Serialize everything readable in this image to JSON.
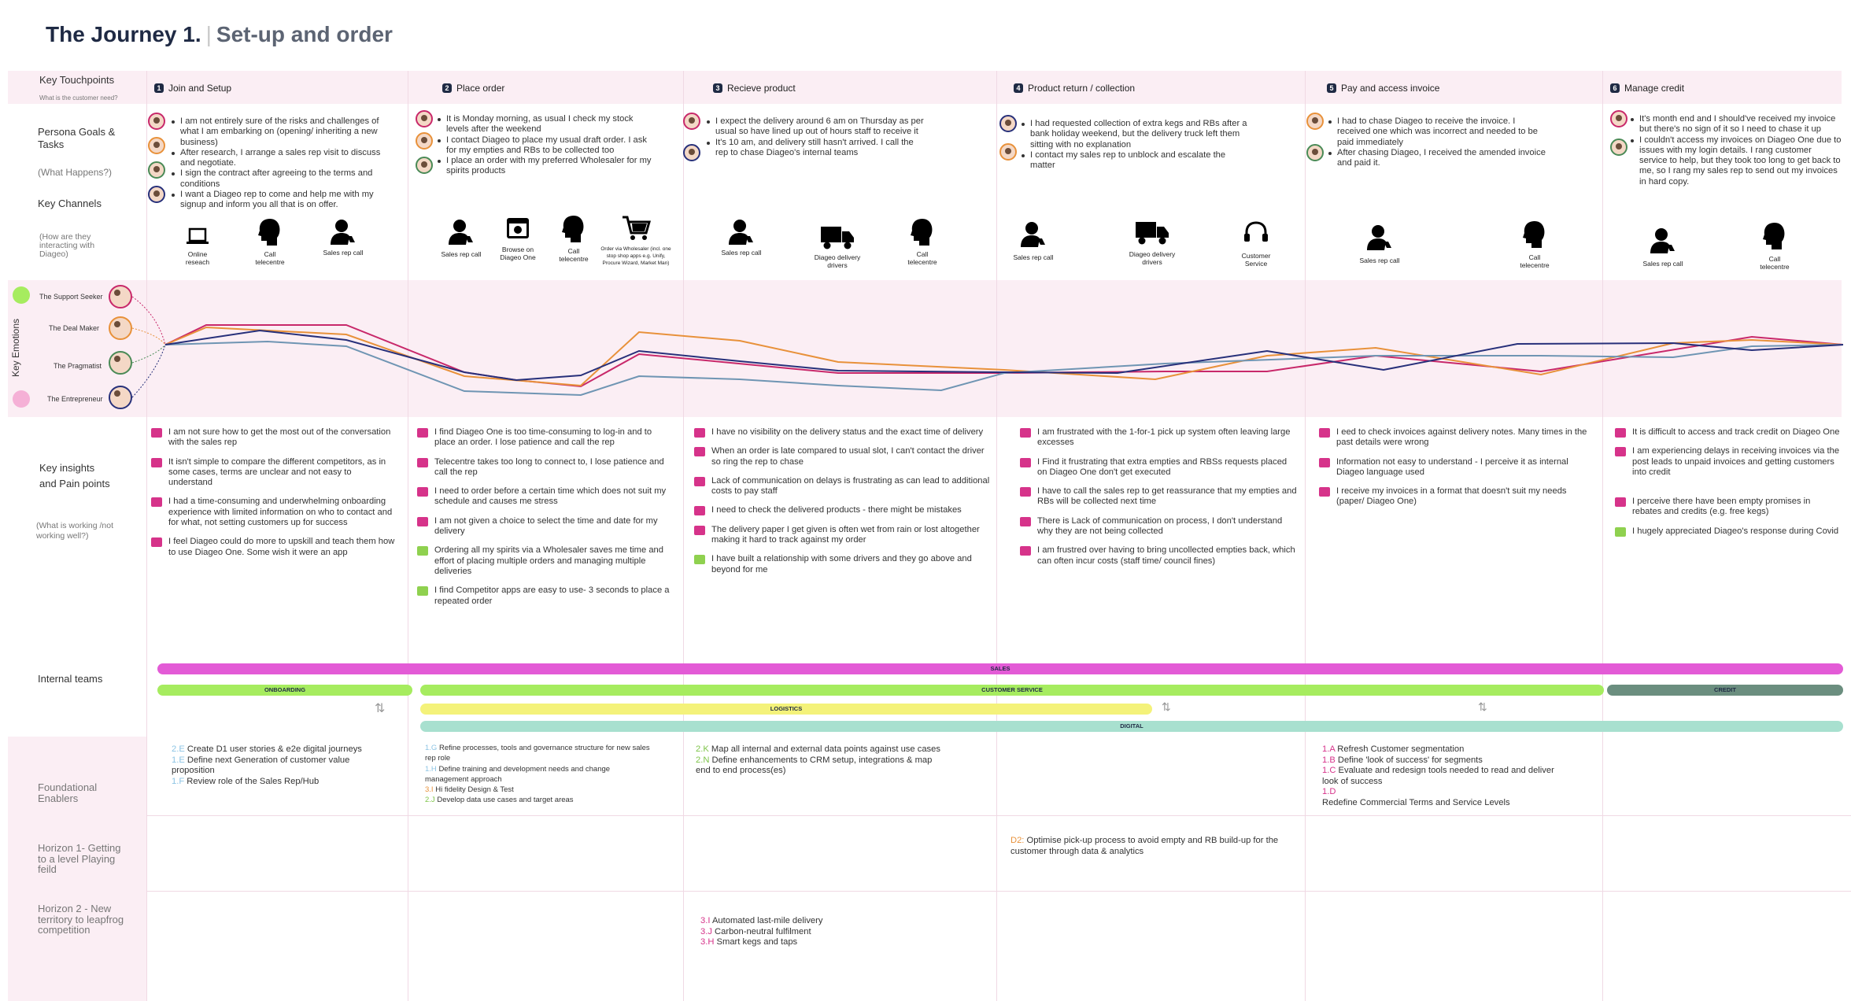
{
  "title": {
    "main": "The Journey 1.",
    "sep": "|",
    "sub": "Set-up and order"
  },
  "rows": {
    "touchpoints": "Key Touchpoints",
    "touchpoints_sub": "What is the customer need?",
    "goals": "Persona Goals & Tasks",
    "goals_sub": "(What Happens?)",
    "channels": "Key Channels",
    "channels_sub": "(How are they interacting with Diageo)",
    "emotions": "Key Emotions",
    "insights": "Key insights and Pain points",
    "insights_sub": "(What is working /not working well?)",
    "teams": "Internal teams",
    "enablers": "Foundational Enablers",
    "h1": "Horizon 1- Getting to a level Playing feild",
    "h2": "Horizon 2 - New territory to leapfrog competition"
  },
  "personas": [
    {
      "name": "The Support Seeker"
    },
    {
      "name": "The Deal Maker"
    },
    {
      "name": "The Pragmatist"
    },
    {
      "name": "The Entrepreneur"
    }
  ],
  "stages": [
    {
      "num": "1",
      "label": "Join and  Setup"
    },
    {
      "num": "2",
      "label": "Place order"
    },
    {
      "num": "3",
      "label": "Recieve product"
    },
    {
      "num": "4",
      "label": "Product return / collection"
    },
    {
      "num": "5",
      "label": "Pay and access invoice"
    },
    {
      "num": "6",
      "label": "Manage credit"
    }
  ],
  "goals": [
    [
      "I am not entirely sure of the risks and challenges of what I am embarking on (opening/ inheriting a new business)",
      "After research, I arrange a sales rep visit to discuss and negotiate.",
      "I sign the contract after agreeing to the terms and conditions",
      "I want a Diageo rep to come and help me with my signup and inform you all that is on offer."
    ],
    [
      "It is Monday morning, as usual I check my stock levels after the weekend",
      "I contact Diageo to place my usual draft order. I ask for my empties and RBs to be collected too",
      "I place an order with my preferred Wholesaler for my spirits products"
    ],
    [
      "I expect the delivery around 6 am on Thursday as per usual so have lined up out of hours staff to receive it",
      "It's 10 am, and delivery still hasn't arrived. I call the rep to chase Diageo's internal teams"
    ],
    [
      "I had requested collection of extra kegs and RBs after a bank holiday weekend, but the delivery truck left them sitting with no explanation",
      "I contact my sales rep to unblock and escalate the matter"
    ],
    [
      "I had to chase Diageo to receive the invoice. I received one which was incorrect and needed to be paid immediately",
      "After chasing Diageo, I received the amended invoice and paid it."
    ],
    [
      "It's month end and I should've received my invoice but there's no sign of it so I need to chase it up",
      "I couldn't access my invoices on Diageo One due to issues with my login details. I rang customer service to help, but they took too long to get back to me, so I rang my sales rep to send out my invoices in hard copy."
    ]
  ],
  "channels": [
    [
      {
        "icon": "laptop-icon",
        "label": "Online reseach"
      },
      {
        "icon": "head-call-icon",
        "label": "Call telecentre"
      },
      {
        "icon": "sales-rep-icon",
        "label": "Sales rep call"
      }
    ],
    [
      {
        "icon": "sales-rep-icon",
        "label": "Sales rep call"
      },
      {
        "icon": "browser-icon",
        "label": "Browse on Diageo One"
      },
      {
        "icon": "head-call-icon",
        "label": "Call telecentre"
      },
      {
        "icon": "cart-icon",
        "label": "Order via Wholesaler (incl. one stop shop apps e.g. Unify, Procure Wizard, Market Man)"
      }
    ],
    [
      {
        "icon": "sales-rep-icon",
        "label": "Sales rep call"
      },
      {
        "icon": "truck-icon",
        "label": "Diageo delivery drivers"
      },
      {
        "icon": "head-call-icon",
        "label": "Call telecentre"
      }
    ],
    [
      {
        "icon": "sales-rep-icon",
        "label": "Sales rep call"
      },
      {
        "icon": "truck-icon",
        "label": "Diageo delivery drivers"
      },
      {
        "icon": "headset-icon",
        "label": "Customer Service"
      }
    ],
    [
      {
        "icon": "sales-rep-icon",
        "label": "Sales rep call"
      },
      {
        "icon": "head-call-icon",
        "label": "Call telecentre"
      }
    ],
    [
      {
        "icon": "sales-rep-icon",
        "label": "Sales rep call"
      },
      {
        "icon": "head-call-icon",
        "label": "Call telecentre"
      }
    ]
  ],
  "insights": [
    [
      {
        "t": "I am not sure how to get the most out of the conversation with the sales rep",
        "s": "down"
      },
      {
        "t": "It isn't simple to compare the different competitors, as in some cases,  terms are unclear and not easy to understand",
        "s": "down"
      },
      {
        "t": "I had a time-consuming and underwhelming onboarding experience with limited information on who to contact and for what, not setting customers up for success",
        "s": "down"
      },
      {
        "t": "I feel Diageo could do more to upskill and teach them how to use Diageo One. Some wish it were an app",
        "s": "down"
      }
    ],
    [
      {
        "t": "I find Diageo One is too time-consuming to log-in and to place an order. I lose patience and call the rep",
        "s": "down"
      },
      {
        "t": "Telecentre takes too long to connect to, I lose patience and call the rep",
        "s": "down"
      },
      {
        "t": "I need to order before a certain time which does not suit my schedule and causes me stress",
        "s": "down"
      },
      {
        "t": "I am not given a choice to select the time and date for my delivery",
        "s": "down"
      },
      {
        "t": "Ordering all my spirits via a Wholesaler saves me time and effort of placing multiple orders and managing multiple deliveries",
        "s": "up"
      },
      {
        "t": "I find Competitor apps are easy to use- 3 seconds to place a repeated order",
        "s": "up"
      }
    ],
    [
      {
        "t": "I have no visibility on the delivery status and the exact time of delivery",
        "s": "down"
      },
      {
        "t": "When an order is late compared to usual slot, I can't contact the driver so ring the rep to chase",
        "s": "down"
      },
      {
        "t": "Lack of communication on delays is frustrating as can lead to additional costs to pay staff",
        "s": "down"
      },
      {
        "t": "I need to check the delivered products - there might be mistakes",
        "s": "down"
      },
      {
        "t": "The delivery paper I get given is often wet from rain or lost altogether making it hard to track against my order",
        "s": "down"
      },
      {
        "t": "I have built a relationship with some drivers and they go above and beyond for me",
        "s": "up"
      }
    ],
    [
      {
        "t": "I am frustrated with the 1-for-1 pick up system often leaving large excesses",
        "s": "down"
      },
      {
        "t": "I Find it frustrating that extra empties and RBSs requests placed on Diageo One don't get executed",
        "s": "down"
      },
      {
        "t": "I have to call the sales rep to get reassurance that my empties and RBs will be collected next time",
        "s": "down"
      },
      {
        "t": "There is Lack of communication on process, I don't understand why they are not being collected",
        "s": "down"
      },
      {
        "t": "I am frustred over having to bring uncollected empties back, which can often incur costs (staff time/ council fines)",
        "s": "down"
      }
    ],
    [
      {
        "t": "I eed to check invoices against delivery notes. Many times in the past details were wrong",
        "s": "down"
      },
      {
        "t": "Information not easy to understand - I perceive it as internal Diageo language used",
        "s": "down"
      },
      {
        "t": "I receive my invoices in a format that doesn't suit my needs (paper/ Diageo One)",
        "s": "down"
      }
    ],
    [
      {
        "t": "It is difficult to access and track credit on Diageo One",
        "s": "down"
      },
      {
        "t": "I am experiencing delays in receiving invoices via the post leads to unpaid invoices and getting customers into credit",
        "s": "down"
      },
      {
        "t": "I perceive there have been empty promises in rebates and credits (e.g. free kegs)",
        "s": "down"
      },
      {
        "t": "I hugely appreciated Diageo's response during Covid",
        "s": "up"
      }
    ]
  ],
  "teams": {
    "sales": "SALES",
    "onboarding": "ONBOARDING",
    "customer_service": "CUSTOMER SERVICE",
    "credit": "CREDIT",
    "logistics": "LOGISTICS",
    "digital": "DIGITAL"
  },
  "enablers": {
    "c1": [
      {
        "code": "2.E",
        "text": "Create D1 user stories & e2e digital journeys"
      },
      {
        "code": "1.E",
        "text": "Define next Generation of customer value proposition"
      },
      {
        "code": "1.F",
        "text": "Review role of the Sales Rep/Hub"
      }
    ],
    "c2": [
      {
        "code": "1.G",
        "text": "Refine processes, tools and governance structure for new sales rep role"
      },
      {
        "code": "1.H",
        "text": "Define training and development needs and change management approach"
      },
      {
        "code": "3.I",
        "text": "Hi fidelity Design & Test"
      },
      {
        "code": "2.J",
        "text": "Develop data use cases and target areas"
      }
    ],
    "c3": [
      {
        "code": "2.K",
        "text": "Map all internal and external data points against use cases"
      },
      {
        "code": "2.N",
        "text": "Define enhancements to CRM setup, integrations & map end to end process(es)"
      }
    ],
    "c5": [
      {
        "code": "1.A",
        "text": "Refresh Customer segmentation"
      },
      {
        "code": "1.B",
        "text": "Define 'look of success' for segments"
      },
      {
        "code": "1.C",
        "text": "Evaluate and redesign tools needed to read and deliver look of success"
      },
      {
        "code": "1.D",
        "text": "Redefine Commercial Terms and Service Levels"
      }
    ]
  },
  "h1": {
    "code": "D2:",
    "text": "Optimise pick-up process to avoid empty and RB build-up for the customer through data & analytics"
  },
  "h2": [
    {
      "code": "3.I",
      "text": "Automated last-mile delivery"
    },
    {
      "code": "3.J",
      "text": "Carbon-neutral fulfilment"
    },
    {
      "code": "3.H",
      "text": "Smart kegs and taps"
    }
  ],
  "colors": {
    "support": "#c8286a",
    "deal": "#e8913a",
    "pragmatist": "#6f95b3",
    "entrepreneur": "#27307a",
    "sales": "#e35bd6",
    "onboarding": "#a6ec5f",
    "logistics": "#f4f27a",
    "digital": "#a8e0cf",
    "credit": "#6b8e7f"
  }
}
